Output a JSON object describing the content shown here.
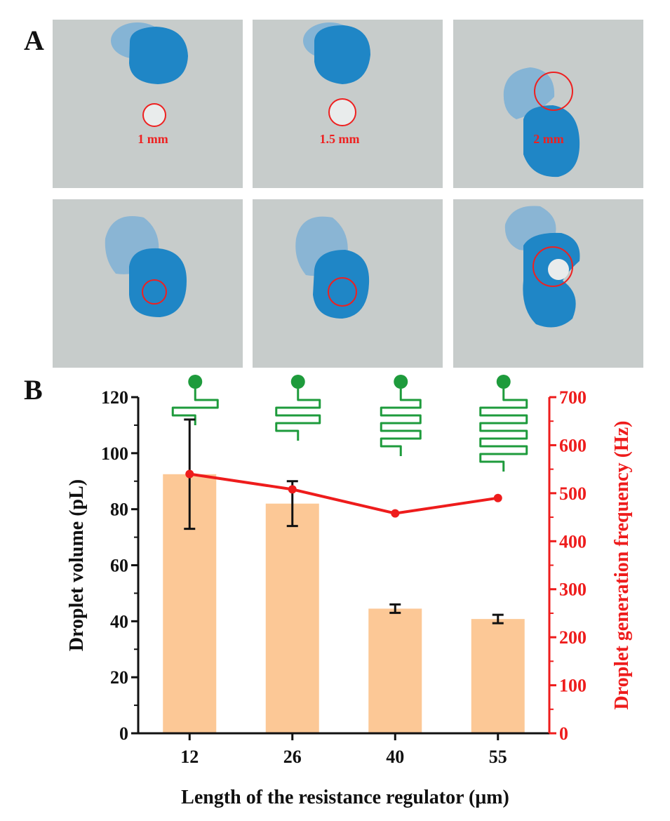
{
  "panel_a": {
    "letter": "A",
    "photo_labels": [
      "1 mm",
      "1.5 mm",
      "2 mm"
    ]
  },
  "panel_b": {
    "letter": "B"
  },
  "colors": {
    "bar": "#fcc896",
    "line": "#ee1c1c",
    "error_bar": "#111111",
    "regulator_icon": "#1e9b3c",
    "droplet": "#1f86c6",
    "photo_bg": "#c7cccb",
    "circle": "#ee2020"
  },
  "icons": [
    "resistance-regulator-12-icon",
    "resistance-regulator-26-icon",
    "resistance-regulator-40-icon",
    "resistance-regulator-55-icon"
  ],
  "chart_data": {
    "type": "bar",
    "categories": [
      "12",
      "26",
      "40",
      "55"
    ],
    "xlabel": "Length of the resistance regulator (μm)",
    "ylabel": "Droplet volume (pL)",
    "ylabel_right": "Droplet generation frequency (Hz)",
    "ylim": [
      0,
      120
    ],
    "yticks": [
      "0",
      "20",
      "40",
      "60",
      "80",
      "100",
      "120"
    ],
    "ylim_right": [
      0,
      700
    ],
    "yticks_right": [
      "0",
      "100",
      "200",
      "300",
      "400",
      "500",
      "600",
      "700"
    ],
    "series": [
      {
        "type": "bar",
        "values": [
          92.5,
          82,
          44.5,
          40.8
        ],
        "errors": [
          19.5,
          8,
          1.5,
          1.5
        ]
      },
      {
        "type": "line",
        "axis": "right",
        "values": [
          540,
          508,
          458,
          490
        ]
      }
    ],
    "grid": false,
    "legend": "none"
  }
}
